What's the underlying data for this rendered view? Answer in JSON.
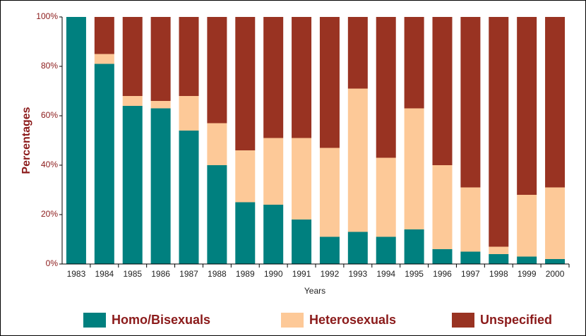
{
  "chart_data": {
    "type": "stacked_bar_100",
    "y_label": "Percentages",
    "x_label": "Years",
    "categories": [
      "1983",
      "1984",
      "1985",
      "1986",
      "1987",
      "1988",
      "1989",
      "1990",
      "1991",
      "1992",
      "1993",
      "1994",
      "1995",
      "1996",
      "1997",
      "1998",
      "1999",
      "2000"
    ],
    "series": [
      {
        "name": "Homo/Bisexuals",
        "color": "#00807f",
        "values": [
          100,
          81,
          64,
          63,
          54,
          40,
          25,
          24,
          18,
          11,
          13,
          11,
          14,
          6,
          5,
          4,
          3,
          2
        ]
      },
      {
        "name": "Heterosexuals",
        "color": "#fdc998",
        "values": [
          0,
          4,
          4,
          3,
          14,
          17,
          21,
          27,
          33,
          36,
          58,
          32,
          49,
          34,
          26,
          3,
          25,
          29
        ]
      },
      {
        "name": "Unspecified",
        "color": "#993322",
        "values": [
          0,
          15,
          32,
          34,
          32,
          43,
          54,
          49,
          49,
          53,
          29,
          57,
          37,
          60,
          69,
          93,
          72,
          69
        ]
      }
    ],
    "ylim": [
      0,
      100
    ],
    "yticks": [
      {
        "value": 0,
        "label": "0%"
      },
      {
        "value": 20,
        "label": "20%"
      },
      {
        "value": 40,
        "label": "40%"
      },
      {
        "value": 60,
        "label": "60%"
      },
      {
        "value": 80,
        "label": "80%"
      },
      {
        "value": 100,
        "label": "100%"
      }
    ],
    "legend": "bottom"
  }
}
